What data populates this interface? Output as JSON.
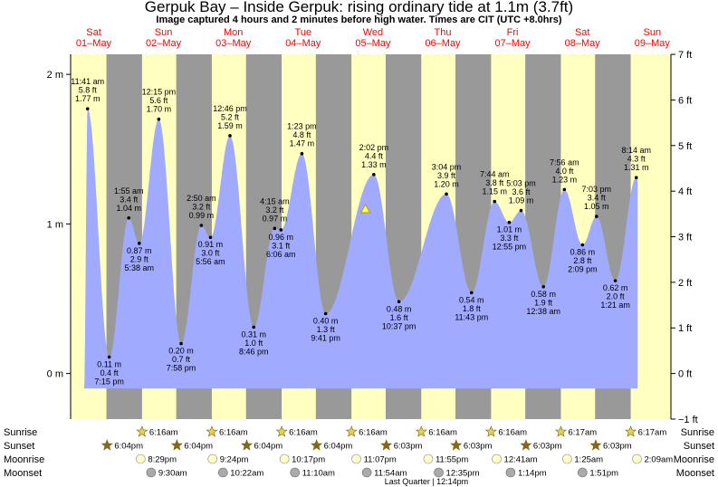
{
  "title": "Gerpuk Bay – Inside Gerpuk: rising  ordinary tide at 1.1m (3.7ft)",
  "subtitle": "Image captured 4 hours and 2 minutes before high water. Times are CIT (UTC +8.0hrs)",
  "colors": {
    "day_band": "#ffffc0",
    "night_band": "#999999",
    "tide_fill": "#a0aaff",
    "day_label": "#ff0000",
    "sun_icon": "#e8d050",
    "sunset_icon": "#886622",
    "moonrise_icon": "#ffffc8",
    "moonset_icon": "#aaaaaa"
  },
  "days": [
    {
      "dow": "Sat",
      "date": "01–May"
    },
    {
      "dow": "Sun",
      "date": "02–May"
    },
    {
      "dow": "Mon",
      "date": "03–May"
    },
    {
      "dow": "Tue",
      "date": "04–May"
    },
    {
      "dow": "Wed",
      "date": "05–May"
    },
    {
      "dow": "Thu",
      "date": "06–May"
    },
    {
      "dow": "Fri",
      "date": "07–May"
    },
    {
      "dow": "Sat",
      "date": "08–May"
    },
    {
      "dow": "Sun",
      "date": "09–May"
    }
  ],
  "chart_data": {
    "type": "area",
    "y_left_ticks": [
      "2 m",
      "1 m",
      "0 m"
    ],
    "y_left_tick_values": [
      2,
      1,
      0
    ],
    "y_right_ticks": [
      "7 ft",
      "6 ft",
      "5 ft",
      "4 ft",
      "3 ft",
      "2 ft",
      "1 ft",
      "0 ft",
      "−1 ft"
    ],
    "y_right_tick_values": [
      7,
      6,
      5,
      4,
      3,
      2,
      1,
      0,
      -1
    ],
    "ylim_m": [
      -0.305,
      2.134
    ],
    "time_range_days": [
      0,
      8.45
    ],
    "current_level_m": 1.1,
    "current_time_day": 3.97,
    "extremes": [
      {
        "t": -0.01,
        "h": 1.77,
        "labels": [
          "11:41 am",
          "5.8 ft",
          "1.77 m"
        ],
        "kind": "high"
      },
      {
        "t": 0.3,
        "h": 0.11,
        "labels": [
          "0.11 m",
          "0.4 ft",
          "7:15 pm"
        ],
        "kind": "low"
      },
      {
        "t": 0.58,
        "h": 1.04,
        "labels": [
          "1:55 am",
          "3.4 ft",
          "1.04 m"
        ],
        "kind": "high"
      },
      {
        "t": 0.73,
        "h": 0.87,
        "labels": [
          "0.87 m",
          "2.9 ft",
          "5:38 am"
        ],
        "kind": "low"
      },
      {
        "t": 1.01,
        "h": 1.7,
        "labels": [
          "12:15 pm",
          "5.6 ft",
          "1.70 m"
        ],
        "kind": "high"
      },
      {
        "t": 1.33,
        "h": 0.2,
        "labels": [
          "0.20 m",
          "0.7 ft",
          "7:58 pm"
        ],
        "kind": "low"
      },
      {
        "t": 1.62,
        "h": 0.99,
        "labels": [
          "2:50 am",
          "3.2 ft",
          "0.99 m"
        ],
        "kind": "high"
      },
      {
        "t": 1.75,
        "h": 0.91,
        "labels": [
          "0.91 m",
          "3.0 ft",
          "5:56 am"
        ],
        "kind": "low"
      },
      {
        "t": 2.03,
        "h": 1.59,
        "labels": [
          "12:46 pm",
          "5.2 ft",
          "1.59 m"
        ],
        "kind": "high"
      },
      {
        "t": 2.37,
        "h": 0.31,
        "labels": [
          "0.31 m",
          "1.0 ft",
          "8:46 pm"
        ],
        "kind": "low"
      },
      {
        "t": 2.67,
        "h": 0.97,
        "labels": [
          "4:15 am",
          "3.2 ft",
          "0.97 m"
        ],
        "kind": "high"
      },
      {
        "t": 2.76,
        "h": 0.96,
        "labels": [
          "0.96 m",
          "3.1 ft",
          "6:06 am"
        ],
        "kind": "low"
      },
      {
        "t": 3.06,
        "h": 1.47,
        "labels": [
          "1:23 pm",
          "4.8 ft",
          "1.47 m"
        ],
        "kind": "high"
      },
      {
        "t": 3.4,
        "h": 0.4,
        "labels": [
          "0.40 m",
          "1.3 ft",
          "9:41 pm"
        ],
        "kind": "low"
      },
      {
        "t": 4.09,
        "h": 1.33,
        "labels": [
          "2:02 pm",
          "4.4 ft",
          "1.33 m"
        ],
        "kind": "high"
      },
      {
        "t": 4.45,
        "h": 0.48,
        "labels": [
          "0.48 m",
          "1.6 ft",
          "10:37 pm"
        ],
        "kind": "low"
      },
      {
        "t": 5.13,
        "h": 1.2,
        "labels": [
          "3:04 pm",
          "3.9 ft",
          "1.20 m"
        ],
        "kind": "high"
      },
      {
        "t": 5.49,
        "h": 0.54,
        "labels": [
          "0.54 m",
          "1.8 ft",
          "11:43 pm"
        ],
        "kind": "low"
      },
      {
        "t": 5.82,
        "h": 1.15,
        "labels": [
          "7:44 am",
          "3.8 ft",
          "1.15 m"
        ],
        "kind": "high"
      },
      {
        "t": 6.03,
        "h": 1.01,
        "labels": [
          "1.01 m",
          "3.3 ft",
          "12:55 pm"
        ],
        "kind": "low"
      },
      {
        "t": 6.2,
        "h": 1.09,
        "labels": [
          "5:03 pm",
          "3.6 ft",
          "1.09 m"
        ],
        "kind": "high"
      },
      {
        "t": 6.52,
        "h": 0.58,
        "labels": [
          "0.58 m",
          "1.9 ft",
          "12:38 am"
        ],
        "kind": "low"
      },
      {
        "t": 6.82,
        "h": 1.23,
        "labels": [
          "7:56 am",
          "4.0 ft",
          "1.23 m"
        ],
        "kind": "high"
      },
      {
        "t": 7.08,
        "h": 0.86,
        "labels": [
          "0.86 m",
          "2.8 ft",
          "2:09 pm"
        ],
        "kind": "low"
      },
      {
        "t": 7.28,
        "h": 1.05,
        "labels": [
          "7:03 pm",
          "3.4 ft",
          "1.05 m"
        ],
        "kind": "high"
      },
      {
        "t": 7.55,
        "h": 0.62,
        "labels": [
          "0.62 m",
          "2.0 ft",
          "1:21 am"
        ],
        "kind": "low"
      },
      {
        "t": 7.85,
        "h": 1.31,
        "labels": [
          "8:14 am",
          "4.3 ft",
          "1.31 m"
        ],
        "kind": "high"
      }
    ],
    "series": [
      {
        "name": "",
        "points": [
          [
            0.0,
            -0.1
          ],
          [
            -0.01,
            1.77
          ],
          [
            0.3,
            0.11
          ],
          [
            0.58,
            1.04
          ],
          [
            0.73,
            0.87
          ],
          [
            1.01,
            1.7
          ],
          [
            1.33,
            0.2
          ],
          [
            1.62,
            0.99
          ],
          [
            1.75,
            0.91
          ],
          [
            2.03,
            1.59
          ],
          [
            2.37,
            0.31
          ],
          [
            2.67,
            0.97
          ],
          [
            2.76,
            0.96
          ],
          [
            3.06,
            1.47
          ],
          [
            3.4,
            0.4
          ],
          [
            3.68,
            1.0
          ],
          [
            3.78,
            1.05
          ],
          [
            4.09,
            1.33
          ],
          [
            4.45,
            0.48
          ],
          [
            4.71,
            1.05
          ],
          [
            4.83,
            1.08
          ],
          [
            5.13,
            1.2
          ],
          [
            5.49,
            0.54
          ],
          [
            5.82,
            1.15
          ],
          [
            6.03,
            1.01
          ],
          [
            6.2,
            1.09
          ],
          [
            6.52,
            0.58
          ],
          [
            6.82,
            1.23
          ],
          [
            7.08,
            0.86
          ],
          [
            7.28,
            1.05
          ],
          [
            7.55,
            0.62
          ],
          [
            7.85,
            1.31
          ]
        ]
      }
    ]
  },
  "astro": {
    "labels": {
      "sunrise": "Sunrise",
      "sunset": "Sunset",
      "moonrise": "Moonrise",
      "moonset": "Moonset"
    },
    "sunrise": [
      {
        "day": 1,
        "time": "6:16am"
      },
      {
        "day": 2,
        "time": "6:16am"
      },
      {
        "day": 3,
        "time": "6:16am"
      },
      {
        "day": 4,
        "time": "6:16am"
      },
      {
        "day": 5,
        "time": "6:16am"
      },
      {
        "day": 6,
        "time": "6:16am"
      },
      {
        "day": 7,
        "time": "6:17am"
      },
      {
        "day": 8,
        "time": "6:17am"
      }
    ],
    "sunset": [
      {
        "day": 0,
        "time": "6:04pm"
      },
      {
        "day": 1,
        "time": "6:04pm"
      },
      {
        "day": 2,
        "time": "6:04pm"
      },
      {
        "day": 3,
        "time": "6:04pm"
      },
      {
        "day": 4,
        "time": "6:03pm"
      },
      {
        "day": 5,
        "time": "6:03pm"
      },
      {
        "day": 6,
        "time": "6:03pm"
      },
      {
        "day": 7,
        "time": "6:03pm"
      }
    ],
    "moonrise": [
      {
        "t": 0.87,
        "time": "8:29pm"
      },
      {
        "t": 1.9,
        "time": "9:24pm"
      },
      {
        "t": 2.93,
        "time": "10:17pm"
      },
      {
        "t": 3.96,
        "time": "11:07pm"
      },
      {
        "t": 4.99,
        "time": "11:55pm"
      },
      {
        "t": 5.97,
        "time": "12:41am"
      },
      {
        "t": 6.98,
        "time": "1:25am"
      },
      {
        "t": 7.98,
        "time": "2:09am"
      }
    ],
    "moonset": [
      {
        "t": 0.4,
        "time": "9:30am"
      },
      {
        "t": 1.43,
        "time": "10:22am"
      },
      {
        "t": 2.46,
        "time": "11:10am"
      },
      {
        "t": 3.49,
        "time": "11:54am"
      },
      {
        "t": 4.52,
        "time": "12:35pm"
      },
      {
        "t": 5.55,
        "time": "1:14pm"
      },
      {
        "t": 6.58,
        "time": "1:51pm"
      }
    ],
    "moon_phase_note": "Last Quarter | 12:14pm"
  }
}
